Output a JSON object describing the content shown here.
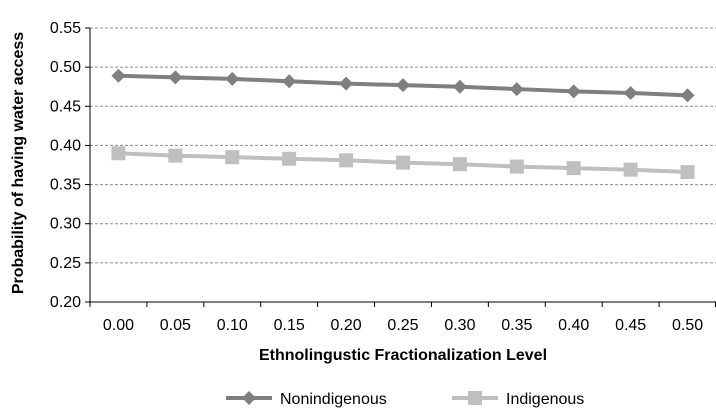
{
  "chart_data": {
    "type": "line",
    "title": "",
    "xlabel": "Ethnolingustic Fractionalization Level",
    "ylabel": "Probability of having water access",
    "x": [
      0.0,
      0.05,
      0.1,
      0.15,
      0.2,
      0.25,
      0.3,
      0.35,
      0.4,
      0.45,
      0.5
    ],
    "x_tick_labels": [
      "0.00",
      "0.05",
      "0.10",
      "0.15",
      "0.20",
      "0.25",
      "0.30",
      "0.35",
      "0.40",
      "0.45",
      "0.50"
    ],
    "y_tick_labels": [
      "0.20",
      "0.25",
      "0.30",
      "0.35",
      "0.40",
      "0.45",
      "0.50",
      "0.55"
    ],
    "ylim": [
      0.2,
      0.55
    ],
    "grid": "horizontal dashed",
    "legend_position": "bottom",
    "series": [
      {
        "name": "Nonindigenous",
        "marker": "diamond",
        "color": "#7f7f7f",
        "values": [
          0.489,
          0.487,
          0.485,
          0.482,
          0.479,
          0.477,
          0.475,
          0.472,
          0.469,
          0.467,
          0.464
        ]
      },
      {
        "name": "Indigenous",
        "marker": "square",
        "color": "#bfbfbf",
        "values": [
          0.39,
          0.387,
          0.385,
          0.383,
          0.381,
          0.378,
          0.376,
          0.373,
          0.371,
          0.369,
          0.366
        ]
      }
    ]
  }
}
